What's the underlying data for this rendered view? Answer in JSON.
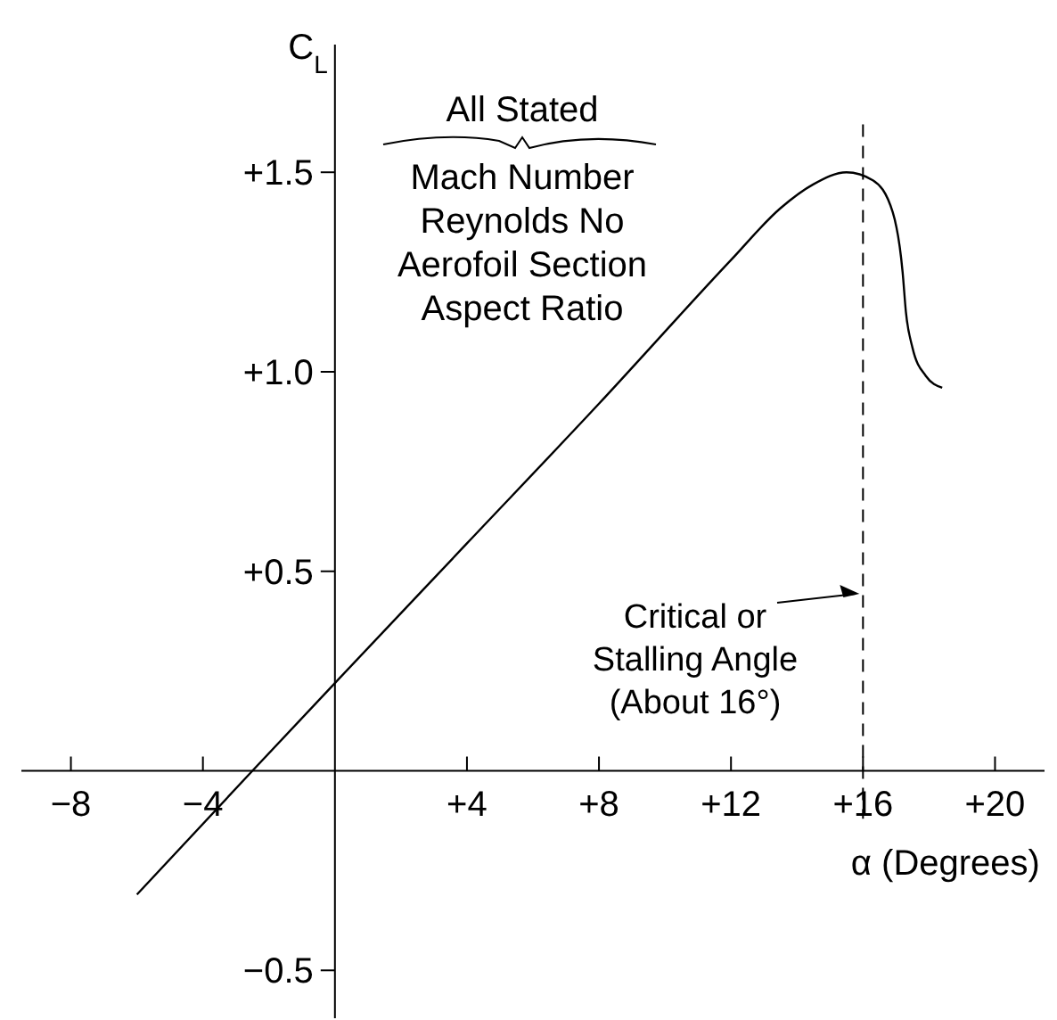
{
  "chart_data": {
    "type": "line",
    "xlabel": "α (Degrees)",
    "ylabel": "C$_{L}$",
    "x": [
      -6,
      -2.5,
      0,
      4,
      8,
      12,
      13.5,
      14.5,
      15.5,
      16.3,
      16.9,
      17.2,
      17.3,
      17.5,
      17.9,
      18.4
    ],
    "series": [
      {
        "color": "#000000",
        "values": [
          -0.31,
          0,
          0.22,
          0.57,
          0.92,
          1.28,
          1.41,
          1.47,
          1.5,
          1.48,
          1.4,
          1.25,
          1.15,
          1.06,
          0.99,
          0.96
        ]
      }
    ],
    "xlim": [
      -9.5,
      21.5
    ],
    "ylim": [
      -0.62,
      1.82
    ],
    "xticks": [
      {
        "value": -8,
        "label": "−8"
      },
      {
        "value": -4,
        "label": "−4"
      },
      {
        "value": 4,
        "label": "+4"
      },
      {
        "value": 8,
        "label": "+8"
      },
      {
        "value": 12,
        "label": "+12"
      },
      {
        "value": 16,
        "label": "+16"
      },
      {
        "value": 20,
        "label": "+20"
      }
    ],
    "yticks": [
      {
        "value": -0.5,
        "label": "−0.5"
      },
      {
        "value": 0.5,
        "label": "+0.5"
      },
      {
        "value": 1,
        "label": "+1.0"
      },
      {
        "value": 1.5,
        "label": "+1.5"
      }
    ],
    "annotations": [
      "All Stated",
      "Mach Number\nReynolds No\nAerofoil Section\nAspect Ratio"
    ],
    "ref_lines": [
      {
        "axis": "x",
        "value": 16,
        "label": "Critical or\nStalling Angle\n(About 16°)",
        "line_style": "dashed",
        "color": "#000000"
      }
    ],
    "line_style": "solid"
  }
}
